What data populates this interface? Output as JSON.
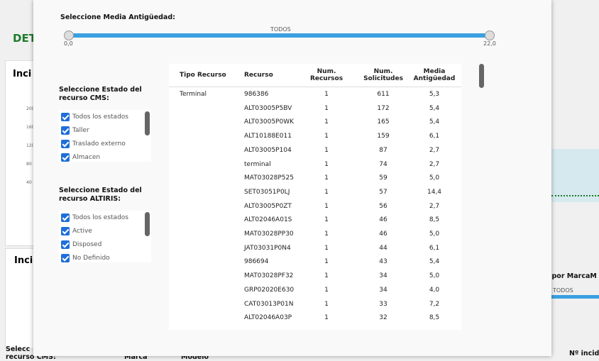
{
  "background": {
    "heading": "DET",
    "card1_title": "Inci",
    "axis_ticks": [
      "200",
      "160",
      "120",
      "80",
      "40"
    ],
    "card2_title": "Inci",
    "right_title": "os por MarcaM",
    "right_slider_label": "TODOS",
    "bottom_left_1": "Selecc",
    "bottom_left_2": "recurso CMS:",
    "bottom_marca": "Marca",
    "bottom_modelo": "Modelo",
    "bottom_right": "Nº incide"
  },
  "modal": {
    "slider": {
      "title": "Seleccione Media Antigüedad:",
      "label": "TODOS",
      "min_label": "0,0",
      "max_label": "22,0"
    },
    "filters": [
      {
        "title": "Seleccione Estado del recurso CMS:",
        "options": [
          "Todos los estados",
          "Taller",
          "Traslado externo",
          "Almacen"
        ]
      },
      {
        "title": "Seleccione Estado del recurso ALTIRIS:",
        "options": [
          "Todos los estados",
          "Active",
          "Disposed",
          "No Definido"
        ]
      }
    ],
    "table": {
      "headers": [
        "Tipo Recurso",
        "Recurso",
        "Num. Recursos",
        "Num. Solicitudes",
        "Media Antigüedad"
      ],
      "rows": [
        [
          "Terminal",
          "986386",
          "1",
          "611",
          "5,3"
        ],
        [
          "",
          "ALT03005P5BV",
          "1",
          "172",
          "5,4"
        ],
        [
          "",
          "ALT03005P0WK",
          "1",
          "165",
          "5,4"
        ],
        [
          "",
          "ALT10188E011",
          "1",
          "159",
          "6,1"
        ],
        [
          "",
          "ALT03005P104",
          "1",
          "87",
          "2,7"
        ],
        [
          "",
          "terminal",
          "1",
          "74",
          "2,7"
        ],
        [
          "",
          "MAT03028P525",
          "1",
          "59",
          "5,0"
        ],
        [
          "",
          "SET03051P0LJ",
          "1",
          "57",
          "14,4"
        ],
        [
          "",
          "ALT03005P0ZT",
          "1",
          "56",
          "2,7"
        ],
        [
          "",
          "ALT02046A01S",
          "1",
          "46",
          "8,5"
        ],
        [
          "",
          "MAT03028PP30",
          "1",
          "46",
          "5,0"
        ],
        [
          "",
          "JAT03031P0N4",
          "1",
          "44",
          "6,1"
        ],
        [
          "",
          "986694",
          "1",
          "43",
          "5,4"
        ],
        [
          "",
          "MAT03028PF32",
          "1",
          "34",
          "5,0"
        ],
        [
          "",
          "GRP02020E630",
          "1",
          "34",
          "4,0"
        ],
        [
          "",
          "CAT03013P01N",
          "1",
          "33",
          "7,2"
        ],
        [
          "",
          "ALT02046A03P",
          "1",
          "32",
          "8,5"
        ]
      ]
    }
  }
}
